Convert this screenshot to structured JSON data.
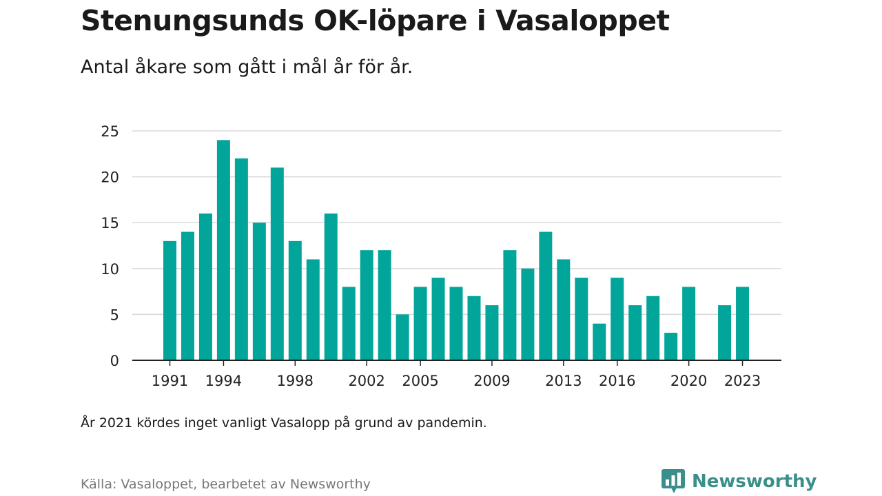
{
  "header": {
    "title": "Stenungsunds OK-löpare i Vasaloppet",
    "subtitle": "Antal åkare som gått i mål år för år."
  },
  "footer": {
    "note": "År 2021 kördes inget vanligt Vasalopp på grund av pandemin.",
    "source": "Källa: Vasaloppet, bearbetet av Newsworthy",
    "brand": "Newsworthy"
  },
  "colors": {
    "bar": "#02a59a",
    "grid": "#d9d9d9",
    "axis": "#222222",
    "brand": "#3a8f8a"
  },
  "chart_data": {
    "type": "bar",
    "x": [
      1991,
      1992,
      1993,
      1994,
      1995,
      1996,
      1997,
      1998,
      1999,
      2000,
      2001,
      2002,
      2003,
      2004,
      2005,
      2006,
      2007,
      2008,
      2009,
      2010,
      2011,
      2012,
      2013,
      2014,
      2015,
      2016,
      2017,
      2018,
      2019,
      2020,
      2021,
      2022,
      2023
    ],
    "values": [
      13,
      14,
      16,
      24,
      22,
      15,
      21,
      13,
      11,
      16,
      8,
      12,
      12,
      5,
      8,
      9,
      8,
      7,
      6,
      12,
      10,
      14,
      11,
      9,
      4,
      9,
      6,
      7,
      3,
      8,
      null,
      6,
      8
    ],
    "xtick_labels": [
      "1991",
      "1994",
      "1998",
      "2002",
      "2005",
      "2009",
      "2013",
      "2016",
      "2020",
      "2023"
    ],
    "ytick_labels": [
      "0",
      "5",
      "10",
      "15",
      "20",
      "25"
    ],
    "ylim": [
      0,
      25
    ],
    "grid": true,
    "legend": "none"
  }
}
